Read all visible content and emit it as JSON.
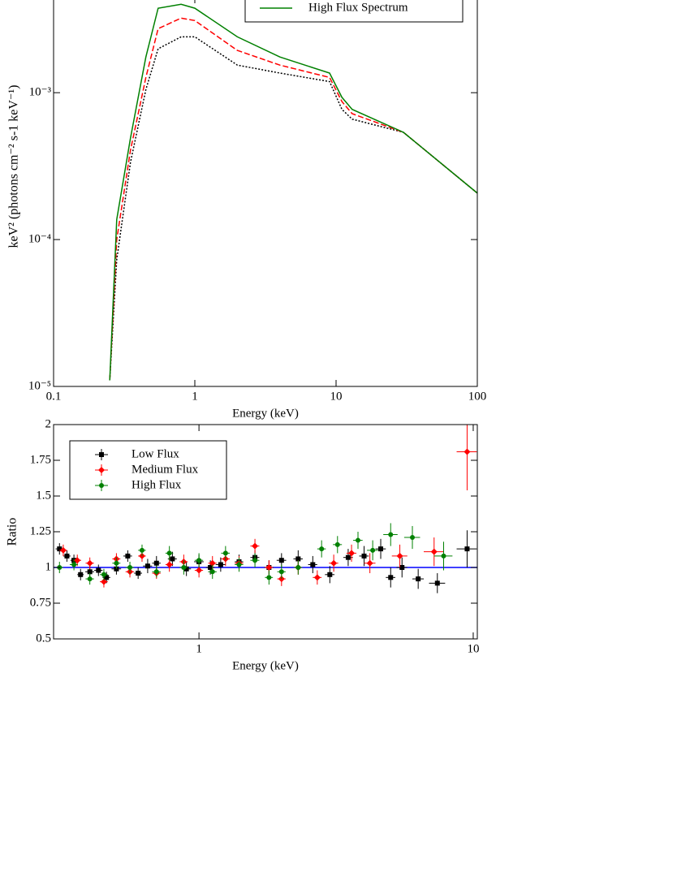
{
  "chart_data": [
    {
      "type": "line",
      "xscale": "log",
      "yscale": "log",
      "x_label": "Energy (keV)",
      "y_label": "keV² (photons cm⁻² s-1 keV⁻¹)",
      "xlim": [
        0.1,
        100
      ],
      "ylim": [
        1e-05,
        0.0045
      ],
      "xticks": [
        0.1,
        1,
        10,
        100
      ],
      "yticks": [
        {
          "value": 1e-05,
          "label": "10⁻⁵"
        },
        {
          "value": 0.0001,
          "label": "10⁻⁴"
        },
        {
          "value": 0.001,
          "label": "10⁻³"
        }
      ],
      "x": [
        0.25,
        0.28,
        0.35,
        0.45,
        0.55,
        0.8,
        1,
        2,
        4,
        9,
        11,
        13,
        30,
        100
      ],
      "series": [
        {
          "color": "#000000",
          "linestyle": "dotted",
          "values": [
            1.1e-05,
            7.3e-05,
            0.000335,
            0.00105,
            0.00199,
            0.0024,
            0.0024,
            0.00154,
            0.00136,
            0.00119,
            0.00077,
            0.00066,
            0.000537,
            0.000207
          ]
        },
        {
          "color": "#ff0000",
          "linestyle": "dashed",
          "values": [
            1.1e-05,
            0.0001,
            0.000405,
            0.00127,
            0.00273,
            0.00322,
            0.0031,
            0.00194,
            0.00154,
            0.00127,
            0.00087,
            0.00072,
            0.000537,
            0.000207
          ]
        },
        {
          "name": "High Flux Spectrum",
          "color": "#008000",
          "linestyle": "solid",
          "values": [
            1.1e-05,
            0.000137,
            0.00049,
            0.00175,
            0.00376,
            0.004,
            0.00376,
            0.0024,
            0.00175,
            0.00136,
            0.00093,
            0.00077,
            0.000537,
            0.000207
          ]
        }
      ]
    },
    {
      "type": "errorbar",
      "xscale": "log",
      "x_label": "Energy (keV)",
      "y_label": "Ratio",
      "xlim": [
        0.295,
        10.35
      ],
      "ylim": [
        0.5,
        2
      ],
      "xticks": [
        1,
        10
      ],
      "yticks": [
        0.5,
        0.75,
        1,
        1.25,
        1.5,
        1.75,
        2
      ],
      "reference_line": {
        "value": 1,
        "color": "#0000ff"
      },
      "legend": "upper left",
      "series": [
        {
          "name": "Low Flux",
          "color": "#000000",
          "marker": "square",
          "x": [
            0.31,
            0.33,
            0.35,
            0.37,
            0.4,
            0.43,
            0.46,
            0.5,
            0.55,
            0.6,
            0.65,
            0.7,
            0.8,
            0.9,
            1.0,
            1.1,
            1.2,
            1.4,
            1.6,
            1.8,
            2.0,
            2.3,
            2.6,
            3.0,
            3.5,
            4.0,
            4.6,
            5.0,
            5.5,
            6.3,
            7.4,
            9.5
          ],
          "xerr": [
            0.01,
            0.01,
            0.01,
            0.01,
            0.015,
            0.015,
            0.015,
            0.02,
            0.02,
            0.02,
            0.025,
            0.025,
            0.03,
            0.035,
            0.04,
            0.04,
            0.05,
            0.05,
            0.06,
            0.07,
            0.08,
            0.09,
            0.1,
            0.12,
            0.14,
            0.16,
            0.2,
            0.2,
            0.25,
            0.3,
            0.5,
            0.8
          ],
          "values": [
            1.13,
            1.08,
            1.05,
            0.95,
            0.97,
            0.98,
            0.93,
            0.99,
            1.08,
            0.96,
            1.01,
            1.03,
            1.06,
            0.99,
            1.04,
            1.0,
            1.02,
            1.04,
            1.07,
            1.0,
            1.05,
            1.06,
            1.02,
            0.95,
            1.07,
            1.08,
            1.13,
            0.93,
            1.0,
            0.92,
            0.89,
            1.13
          ],
          "yerr": [
            0.04,
            0.04,
            0.04,
            0.04,
            0.04,
            0.04,
            0.04,
            0.04,
            0.04,
            0.04,
            0.05,
            0.05,
            0.05,
            0.05,
            0.05,
            0.05,
            0.05,
            0.05,
            0.05,
            0.05,
            0.05,
            0.06,
            0.06,
            0.06,
            0.06,
            0.07,
            0.07,
            0.07,
            0.07,
            0.07,
            0.07,
            0.13
          ]
        },
        {
          "name": "Medium Flux",
          "color": "#ff0000",
          "marker": "diamond",
          "x": [
            0.32,
            0.36,
            0.4,
            0.45,
            0.5,
            0.56,
            0.62,
            0.7,
            0.78,
            0.88,
            1.0,
            1.12,
            1.25,
            1.4,
            1.6,
            1.8,
            2.0,
            2.3,
            2.7,
            3.1,
            3.6,
            4.2,
            5.4,
            7.2,
            9.5
          ],
          "xerr": [
            0.01,
            0.012,
            0.014,
            0.015,
            0.017,
            0.02,
            0.02,
            0.025,
            0.025,
            0.03,
            0.035,
            0.04,
            0.045,
            0.05,
            0.06,
            0.06,
            0.07,
            0.08,
            0.1,
            0.12,
            0.15,
            0.2,
            0.35,
            0.6,
            0.8
          ],
          "values": [
            1.12,
            1.05,
            1.03,
            0.9,
            1.06,
            0.97,
            1.08,
            0.96,
            1.02,
            1.04,
            0.98,
            1.03,
            1.06,
            1.03,
            1.15,
            1.0,
            0.92,
            1.0,
            0.93,
            1.03,
            1.1,
            1.03,
            1.08,
            1.11,
            1.81
          ],
          "yerr": [
            0.04,
            0.04,
            0.04,
            0.04,
            0.04,
            0.04,
            0.04,
            0.04,
            0.05,
            0.05,
            0.05,
            0.05,
            0.05,
            0.05,
            0.05,
            0.05,
            0.05,
            0.05,
            0.05,
            0.06,
            0.06,
            0.07,
            0.08,
            0.1,
            0.27
          ]
        },
        {
          "name": "High Flux",
          "color": "#008000",
          "marker": "circle",
          "x": [
            0.31,
            0.35,
            0.4,
            0.45,
            0.5,
            0.56,
            0.62,
            0.7,
            0.78,
            0.88,
            1.0,
            1.12,
            1.25,
            1.4,
            1.6,
            1.8,
            2.0,
            2.3,
            2.8,
            3.2,
            3.8,
            4.3,
            5.0,
            6.0,
            7.8
          ],
          "xerr": [
            0.01,
            0.012,
            0.014,
            0.015,
            0.017,
            0.02,
            0.02,
            0.025,
            0.025,
            0.03,
            0.035,
            0.04,
            0.045,
            0.05,
            0.06,
            0.06,
            0.07,
            0.08,
            0.1,
            0.12,
            0.15,
            0.2,
            0.3,
            0.4,
            0.6
          ],
          "values": [
            1.0,
            1.02,
            0.92,
            0.95,
            1.03,
            1.0,
            1.12,
            0.97,
            1.1,
            1.0,
            1.05,
            0.97,
            1.1,
            1.02,
            1.05,
            0.93,
            0.97,
            1.0,
            1.13,
            1.16,
            1.19,
            1.12,
            1.23,
            1.21,
            1.08
          ],
          "yerr": [
            0.04,
            0.04,
            0.04,
            0.04,
            0.04,
            0.04,
            0.04,
            0.04,
            0.05,
            0.05,
            0.05,
            0.05,
            0.05,
            0.05,
            0.05,
            0.05,
            0.05,
            0.05,
            0.06,
            0.06,
            0.06,
            0.07,
            0.08,
            0.08,
            0.1
          ]
        }
      ]
    }
  ]
}
